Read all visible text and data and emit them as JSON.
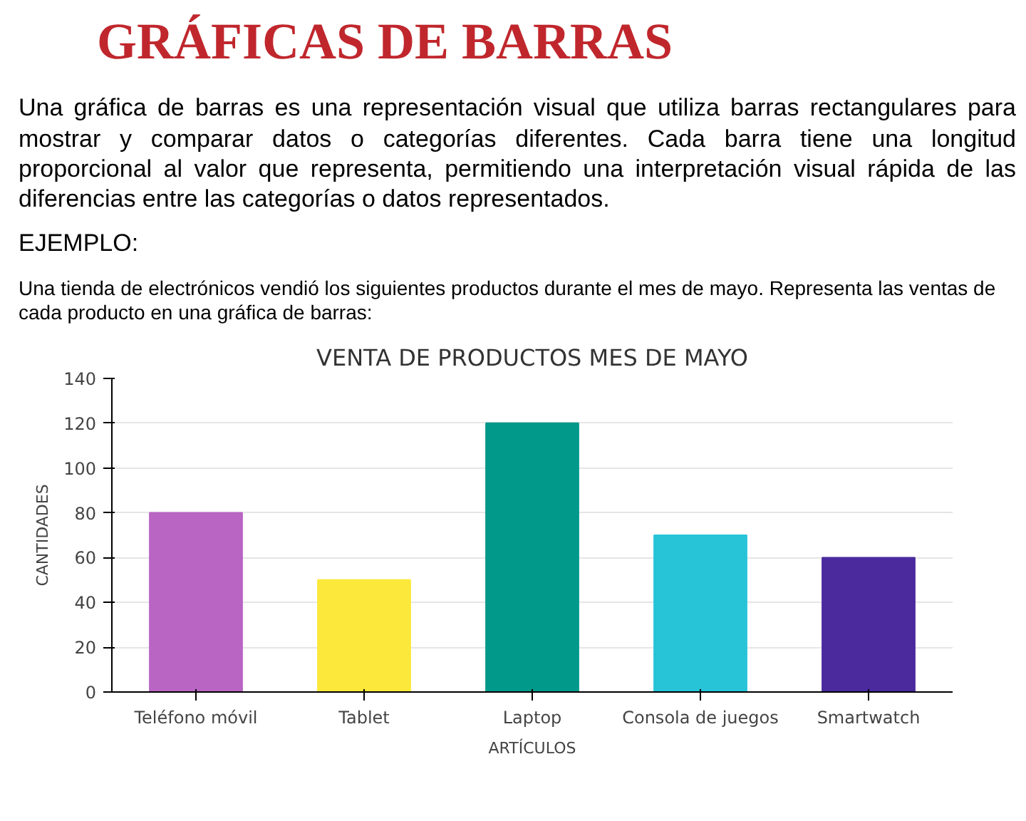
{
  "chart_data": {
    "type": "bar",
    "title": "GRÁFICAS DE BARRAS",
    "annotations": [
      "Una gráfica de barras es una representación visual que utiliza barras rectangulares para mostrar y comparar datos o categorías diferentes. Cada barra tiene una longitud proporcional al valor que representa, permitiendo una interpretación visual rápida de las diferencias entre las categorías o datos representados.",
      "EJEMPLO:",
      "Una tienda de electrónicos vendió los siguientes productos durante el mes de mayo. Representa las ventas de cada producto en una gráfica de barras:"
    ],
    "subtitle": "VENTA DE PRODUCTOS MES DE MAYO",
    "categories": [
      "Teléfono móvil",
      "Tablet",
      "Laptop",
      "Consola de juegos",
      "Smartwatch"
    ],
    "values": [
      80,
      50,
      120,
      70,
      60
    ],
    "colors": [
      "#b965c4",
      "#fce83a",
      "#00998a",
      "#27c4d8",
      "#4b2a9e"
    ],
    "xlabel": "ARTÍCULOS",
    "ylabel": "CANTIDADES",
    "ylim": [
      0,
      140
    ],
    "yticks": [
      0,
      20,
      40,
      60,
      80,
      100,
      120,
      140
    ],
    "grid": "y"
  }
}
